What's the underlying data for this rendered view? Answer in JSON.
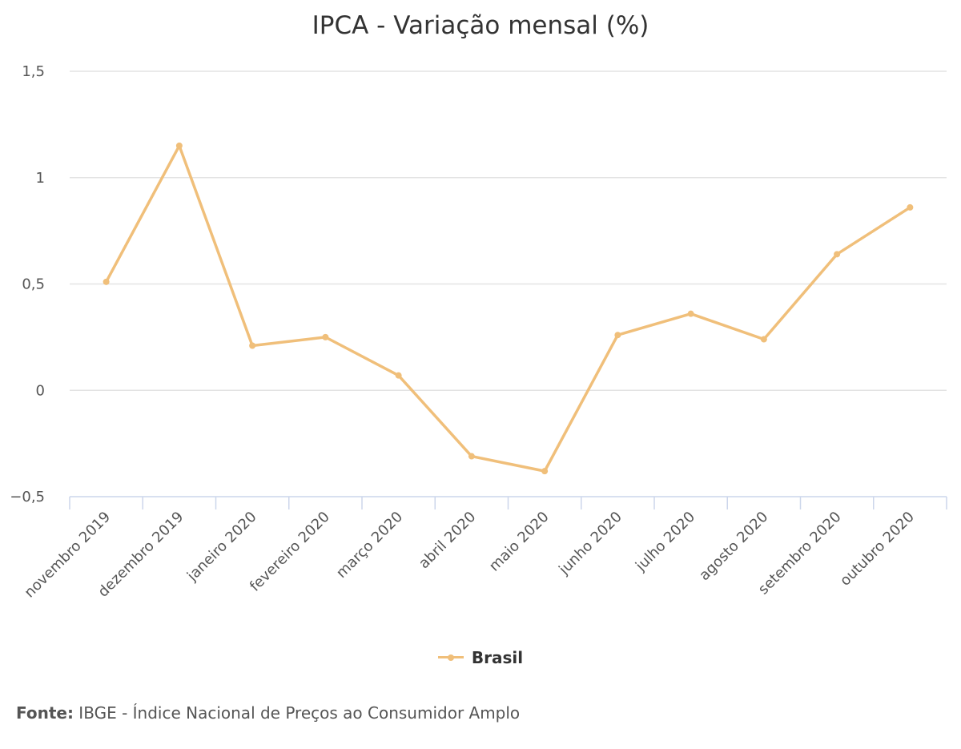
{
  "chart_data": {
    "type": "line",
    "title": "IPCA - Variação mensal (%)",
    "categories": [
      "novembro 2019",
      "dezembro 2019",
      "janeiro 2020",
      "fevereiro 2020",
      "março 2020",
      "abril 2020",
      "maio 2020",
      "junho 2020",
      "julho 2020",
      "agosto 2020",
      "setembro 2020",
      "outubro 2020"
    ],
    "series": [
      {
        "name": "Brasil",
        "color": "#f0bf7a",
        "values": [
          0.51,
          1.15,
          0.21,
          0.25,
          0.07,
          -0.31,
          -0.38,
          0.26,
          0.36,
          0.24,
          0.64,
          0.86
        ]
      }
    ],
    "ylim": [
      -0.5,
      1.5
    ],
    "yticks": [
      -0.5,
      0,
      0.5,
      1,
      1.5
    ],
    "ytick_labels": [
      "−0,5",
      "0",
      "0,5",
      "1",
      "1,5"
    ],
    "grid": true,
    "legend_position": "bottom"
  },
  "source": {
    "label": "Fonte:",
    "text": " IBGE - Índice Nacional de Preços ao Consumidor Amplo"
  }
}
